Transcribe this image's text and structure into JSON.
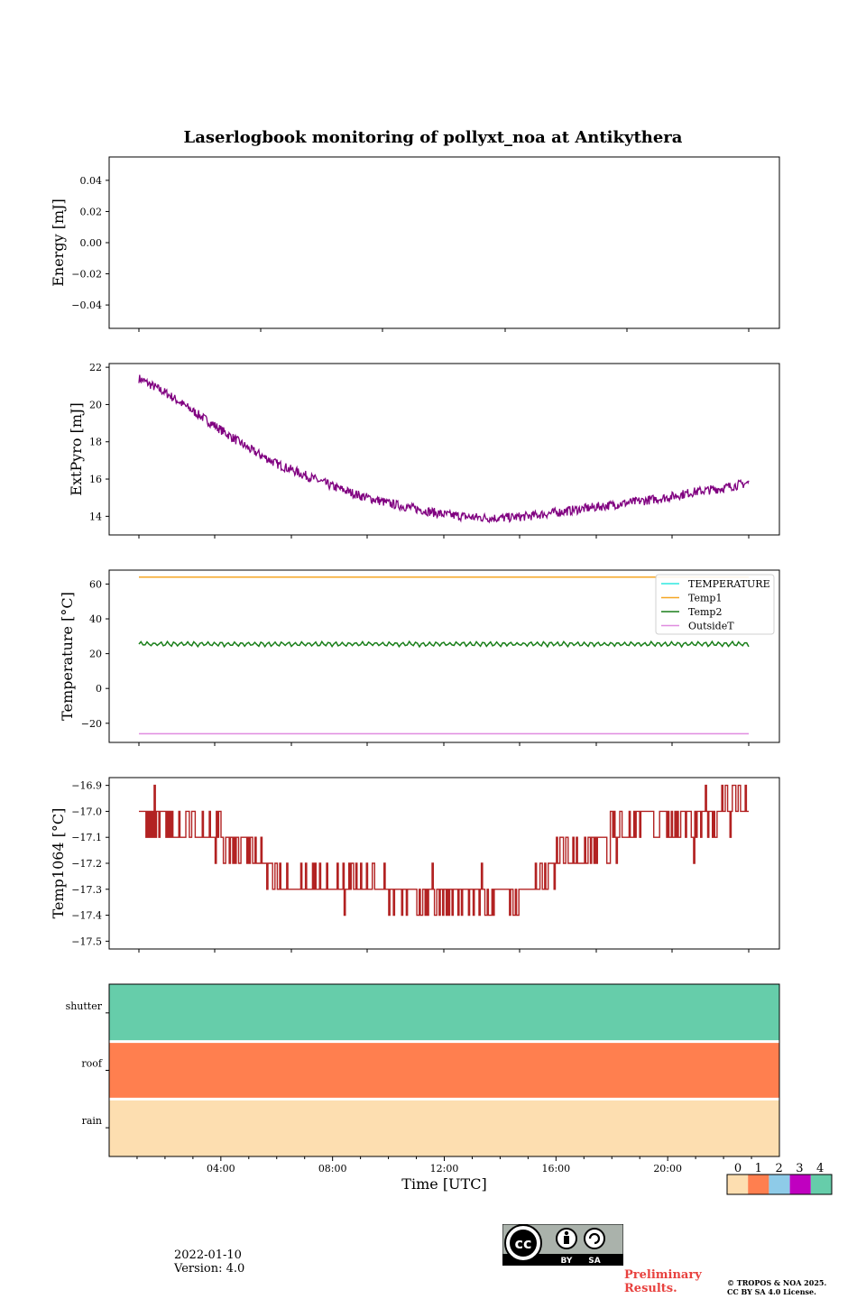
{
  "title": "Laserlogbook monitoring of pollyxt_noa at Antikythera",
  "footer": {
    "date": "2022-01-10",
    "version": "Version: 4.0",
    "preliminary_line1": "Preliminary",
    "preliminary_line2": "Results.",
    "copyright_line1": "© TROPOS & NOA 2025.",
    "copyright_line2": "CC BY SA 4.0 License.",
    "license_badge": {
      "by": "BY",
      "sa": "SA",
      "icon": "cc-by-sa-icon"
    }
  },
  "chart_data": [
    {
      "type": "line",
      "ylabel": "Energy [mJ]",
      "ylim": [
        -0.055,
        0.055
      ],
      "yticks": [
        0.04,
        0.02,
        0.0,
        -0.02,
        -0.04
      ],
      "ytick_labels": [
        "0.04",
        "0.02",
        "0.00",
        "−0.02",
        "−0.04"
      ],
      "series": []
    },
    {
      "type": "line",
      "ylabel": "ExtPyro [mJ]",
      "ylim": [
        13,
        22.2
      ],
      "yticks": [
        14,
        16,
        18,
        20,
        22
      ],
      "ytick_labels": [
        "14",
        "16",
        "18",
        "20",
        "22"
      ],
      "x_hours": [
        1,
        2,
        3,
        4,
        5,
        6,
        7,
        8,
        9,
        10,
        11,
        12,
        13,
        14,
        15,
        16,
        17,
        18,
        19,
        20,
        21,
        22,
        23
      ],
      "series": [
        {
          "color": "#800080",
          "values": [
            21.4,
            20.6,
            19.6,
            18.6,
            17.6,
            16.8,
            16.2,
            15.6,
            15.1,
            14.7,
            14.4,
            14.1,
            13.95,
            13.9,
            14.0,
            14.2,
            14.4,
            14.6,
            14.8,
            15.0,
            15.3,
            15.5,
            15.8
          ],
          "noise": 0.25
        }
      ]
    },
    {
      "type": "line",
      "ylabel": "Temperature [°C]",
      "ylim": [
        -31,
        68
      ],
      "yticks": [
        60,
        40,
        20,
        0,
        -20
      ],
      "ytick_labels": [
        "60",
        "40",
        "20",
        "0",
        "−20"
      ],
      "legend": {
        "position": "upper-right",
        "entries": [
          "TEMPERATURE",
          "Temp1",
          "Temp2",
          "OutsideT"
        ]
      },
      "series": [
        {
          "name": "TEMPERATURE",
          "color": "#2ee8e0",
          "values": []
        },
        {
          "name": "Temp1",
          "color": "#f5a623",
          "values": [
            64,
            64
          ]
        },
        {
          "name": "Temp2",
          "color": "#1a7f1a",
          "values": [
            25.5,
            25.5
          ],
          "oscillation": 1.3
        },
        {
          "name": "OutsideT",
          "color": "#e08ce0",
          "values": [
            -26,
            -26
          ]
        }
      ],
      "x_range_hours": [
        1,
        23
      ]
    },
    {
      "type": "line",
      "ylabel": "Temp1064 [°C]",
      "ylim": [
        -17.53,
        -16.87
      ],
      "yticks": [
        -16.9,
        -17.0,
        -17.1,
        -17.2,
        -17.3,
        -17.4,
        -17.5
      ],
      "ytick_labels": [
        "−16.9",
        "−17.0",
        "−17.1",
        "−17.2",
        "−17.3",
        "−17.4",
        "−17.5"
      ],
      "x_hours": [
        1,
        2,
        3,
        4,
        5,
        6,
        7,
        8,
        9,
        10,
        11,
        12,
        13,
        14,
        15,
        16,
        17,
        18,
        19,
        20,
        21,
        22,
        23
      ],
      "series": [
        {
          "color": "#b22222",
          "values": [
            -17.05,
            -17.05,
            -17.1,
            -17.1,
            -17.15,
            -17.25,
            -17.3,
            -17.3,
            -17.3,
            -17.3,
            -17.35,
            -17.35,
            -17.35,
            -17.35,
            -17.3,
            -17.2,
            -17.15,
            -17.1,
            -17.05,
            -17.05,
            -17.05,
            -17.0,
            -17.0
          ],
          "step": 0.1
        }
      ]
    },
    {
      "type": "heatmap",
      "rows": [
        "shutter",
        "roof",
        "rain"
      ],
      "row_values": [
        4,
        1,
        0
      ],
      "xlabel": "Time [UTC]",
      "xticks": [
        "04:00",
        "08:00",
        "12:00",
        "16:00",
        "20:00"
      ],
      "xtick_hours": [
        4,
        8,
        12,
        16,
        20
      ],
      "x_range_hours": [
        0,
        24
      ],
      "colorbar": {
        "labels": [
          "0",
          "1",
          "2",
          "3",
          "4"
        ],
        "colors": [
          "#fddeb0",
          "#ff7f4f",
          "#8ecbe8",
          "#c000c0",
          "#66cdaa"
        ]
      }
    }
  ]
}
